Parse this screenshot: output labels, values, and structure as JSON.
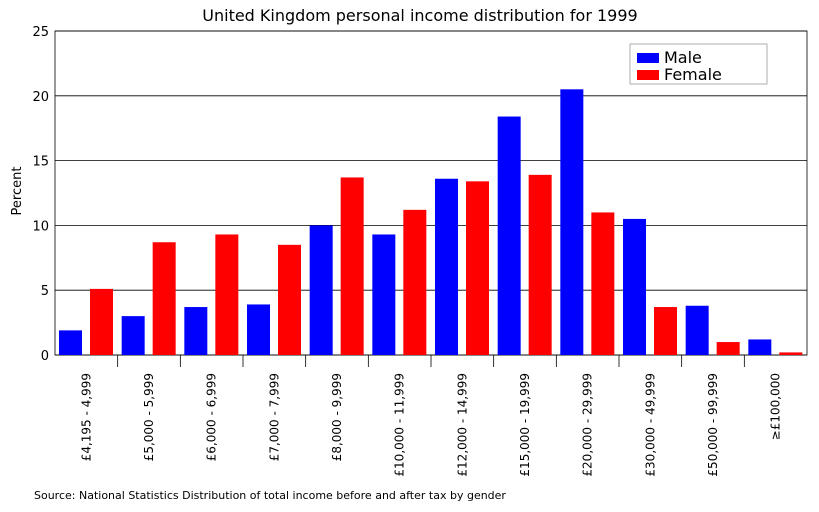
{
  "chart_data": {
    "type": "bar",
    "title": "United Kingdom personal income distribution for 1999",
    "xlabel": "",
    "ylabel": "Percent",
    "ylim": [
      0,
      25
    ],
    "yticks": [
      0,
      5,
      10,
      15,
      20,
      25
    ],
    "grid": true,
    "legend_position": "top-right",
    "categories": [
      "£4,195 - 4,999",
      "£5,000 - 5,999",
      "£6,000 - 6,999",
      "£7,000 - 7,999",
      "£8,000 - 9,999",
      "£10,000 - 11,999",
      "£12,000 - 14,999",
      "£15,000 - 19,999",
      "£20,000 - 29,999",
      "£30,000 - 49,999",
      "£50,000 - 99,999",
      "≥£100,000"
    ],
    "series": [
      {
        "name": "Male",
        "color": "#0000ff",
        "values": [
          1.9,
          3.0,
          3.7,
          3.9,
          10.0,
          9.3,
          13.6,
          18.4,
          20.5,
          10.5,
          3.8,
          1.2
        ]
      },
      {
        "name": "Female",
        "color": "#ff0000",
        "values": [
          5.1,
          8.7,
          9.3,
          8.5,
          13.7,
          11.2,
          13.4,
          13.9,
          11.0,
          3.7,
          1.0,
          0.2
        ]
      }
    ]
  },
  "source": "Source: National Statistics Distribution of total income before and after tax by gender"
}
